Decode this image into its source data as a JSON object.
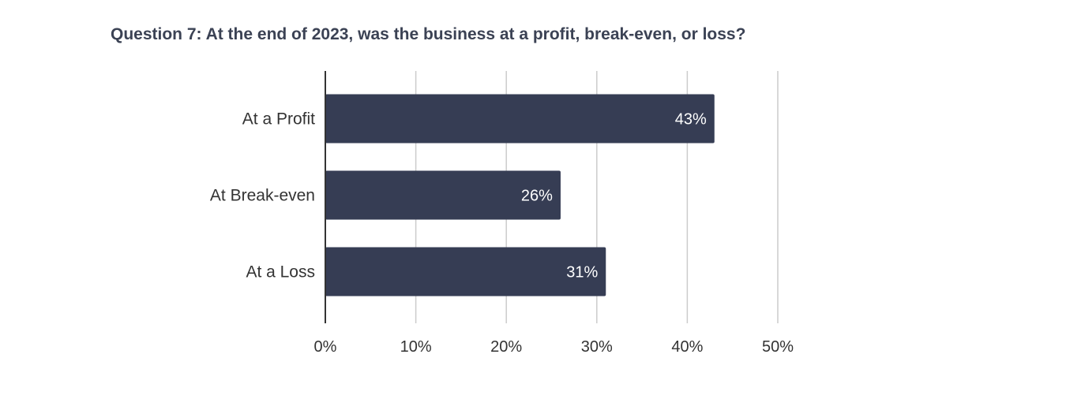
{
  "chart_data": {
    "type": "bar",
    "orientation": "horizontal",
    "title": "Question 7: At the end of 2023, was the business at a profit, break-even, or loss?",
    "categories": [
      "At a Profit",
      "At Break-even",
      "At a Loss"
    ],
    "values": [
      43,
      26,
      31
    ],
    "data_labels": [
      "43%",
      "26%",
      "31%"
    ],
    "xlim": [
      0,
      50
    ],
    "x_ticks": [
      0,
      10,
      20,
      30,
      40,
      50
    ],
    "x_tick_labels": [
      "0%",
      "10%",
      "20%",
      "30%",
      "40%",
      "50%"
    ],
    "xlabel": "",
    "ylabel": "",
    "grid": true,
    "legend": "none",
    "bar_color": "#363d54",
    "grid_color": "#cccccc",
    "axis_color": "#333333"
  }
}
